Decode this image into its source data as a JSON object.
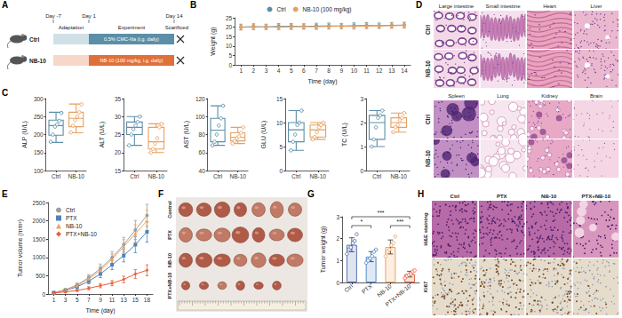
{
  "panel_labels": [
    "A",
    "B",
    "C",
    "D",
    "E",
    "F",
    "G",
    "H"
  ],
  "schematic": {
    "days": [
      "Day -7",
      "Day 1",
      "Day 14"
    ],
    "phases": [
      "Adaptation",
      "Experiment",
      "Scarificed"
    ],
    "groups": [
      {
        "name": "Ctrl",
        "treatment": "0.5% CMC-Na (i.g. daily)",
        "color": "#5b8fa8"
      },
      {
        "name": "NB-10",
        "treatment": "NB-10 (100 mg/kg, i.g. daily)",
        "color": "#e0703a"
      }
    ]
  },
  "histology": {
    "rows": [
      "Ctrl",
      "NB-10"
    ],
    "organs": [
      [
        "Large intestine",
        "Small intestine",
        "Heart",
        "Liver"
      ],
      [
        "Spleen",
        "Lung",
        "Kidney",
        "Brain"
      ]
    ]
  },
  "tumor_photos": {
    "groups": [
      "Control",
      "PTX",
      "NB-10",
      "PTX+NB-10"
    ]
  },
  "staining": {
    "columns": [
      "Ctrl",
      "PTX",
      "NB-10",
      "PTX+NB-10"
    ],
    "rows": [
      "H&E staining",
      "Ki67"
    ]
  },
  "chart_data": [
    {
      "type": "line",
      "x_label": "Time (day)",
      "y_label": "Weight (g)",
      "categories": [
        "1",
        "2",
        "3",
        "4",
        "5",
        "6",
        "7",
        "8",
        "9",
        "10",
        "11",
        "12",
        "13",
        "14"
      ],
      "ylim": [
        0,
        25
      ],
      "yticks": [
        0,
        5,
        10,
        15,
        20,
        25
      ],
      "grid": false,
      "legend": "top",
      "series": [
        {
          "name": "Ctrl",
          "color": "#5b8fa8",
          "marker": "circle",
          "values": [
            20.1,
            20.3,
            20.2,
            20.4,
            20.5,
            20.4,
            20.6,
            20.7,
            20.6,
            20.8,
            20.9,
            20.8,
            21.0,
            21.1
          ],
          "errors": [
            1.5,
            1.5,
            1.4,
            1.5,
            1.5,
            1.4,
            1.5,
            1.5,
            1.4,
            1.5,
            1.5,
            1.4,
            1.5,
            1.5
          ]
        },
        {
          "name": "NB-10 (100 mg/kg)",
          "color": "#e8a060",
          "marker": "circle",
          "values": [
            19.9,
            20.0,
            20.1,
            20.0,
            20.2,
            20.3,
            20.2,
            20.4,
            20.5,
            20.4,
            20.6,
            20.7,
            20.8,
            20.9
          ],
          "errors": [
            1.4,
            1.4,
            1.3,
            1.4,
            1.4,
            1.3,
            1.4,
            1.4,
            1.3,
            1.4,
            1.4,
            1.3,
            1.4,
            1.4
          ]
        }
      ]
    },
    {
      "type": "box",
      "y_label": "ALP (U/L)",
      "categories": [
        "Ctrl",
        "NB-10"
      ],
      "colors": [
        "#5b8fa8",
        "#e8a060"
      ],
      "boxes": [
        [
          178,
          198,
          225,
          240,
          262
        ],
        [
          205,
          222,
          245,
          262,
          285
        ]
      ],
      "points": [
        [
          180,
          200,
          222,
          228,
          238,
          260
        ],
        [
          206,
          225,
          240,
          250,
          262,
          284
        ]
      ],
      "ylim": [
        100,
        300
      ],
      "yticks": [
        100,
        150,
        200,
        250,
        300
      ],
      "grid": false
    },
    {
      "type": "box",
      "y_label": "ALT (U/L)",
      "categories": [
        "Ctrl",
        "NB-10"
      ],
      "colors": [
        "#5b8fa8",
        "#e8a060"
      ],
      "boxes": [
        [
          22,
          25,
          27,
          28.5,
          30
        ],
        [
          20,
          21,
          23,
          27,
          28
        ]
      ],
      "points": [
        [
          22,
          25,
          26.5,
          27.5,
          28.5,
          30
        ],
        [
          20,
          21,
          22.5,
          24,
          27,
          28
        ]
      ],
      "ylim": [
        15,
        35
      ],
      "yticks": [
        15,
        20,
        25,
        30,
        35
      ],
      "grid": false
    },
    {
      "type": "box",
      "y_label": "AST (U/L)",
      "categories": [
        "Ctrl",
        "NB-10"
      ],
      "colors": [
        "#5b8fa8",
        "#e8a060"
      ],
      "boxes": [
        [
          68,
          72,
          85,
          98,
          112
        ],
        [
          70,
          73,
          77,
          82,
          88
        ]
      ],
      "points": [
        [
          68,
          72,
          80,
          90,
          98,
          112
        ],
        [
          70,
          73,
          76,
          78,
          82,
          88
        ]
      ],
      "ylim": [
        40,
        120
      ],
      "yticks": [
        40,
        60,
        80,
        100,
        120
      ],
      "grid": false
    },
    {
      "type": "box",
      "y_label": "GLU (U/L)",
      "categories": [
        "Ctrl",
        "NB-10"
      ],
      "colors": [
        "#5b8fa8",
        "#e8a060"
      ],
      "boxes": [
        [
          4.2,
          6.0,
          8.5,
          10.0,
          12.5
        ],
        [
          6.5,
          7.0,
          8.5,
          9.5,
          10.0
        ]
      ],
      "points": [
        [
          4.2,
          6.0,
          7.5,
          9.5,
          10.0,
          12.5
        ],
        [
          6.5,
          7.0,
          8.0,
          9.0,
          9.5,
          10.0
        ]
      ],
      "ylim": [
        0,
        15
      ],
      "yticks": [
        0,
        5,
        10,
        15
      ],
      "grid": false
    },
    {
      "type": "box",
      "y_label": "TC (U/L)",
      "categories": [
        "Ctrl",
        "NB-10"
      ],
      "colors": [
        "#5b8fa8",
        "#e8a060"
      ],
      "boxes": [
        [
          1.0,
          1.3,
          2.0,
          2.3,
          2.5
        ],
        [
          1.6,
          1.8,
          2.0,
          2.2,
          2.4
        ]
      ],
      "points": [
        [
          1.0,
          1.3,
          1.8,
          2.2,
          2.3,
          2.5
        ],
        [
          1.6,
          1.8,
          1.9,
          2.1,
          2.2,
          2.4
        ]
      ],
      "ylim": [
        0,
        3
      ],
      "yticks": [
        0,
        1,
        2,
        3
      ],
      "grid": false
    },
    {
      "type": "line",
      "x_label": "Time (day)",
      "y_label": "Tumor volume (mm³)",
      "categories": [
        "1",
        "3",
        "5",
        "7",
        "9",
        "11",
        "13",
        "15",
        "18"
      ],
      "ylim": [
        0,
        2500
      ],
      "yticks": [
        0,
        500,
        1000,
        1500,
        2000,
        2500
      ],
      "grid": false,
      "legend": "top-left",
      "series": [
        {
          "name": "Ctrl",
          "color": "#9e9e9e",
          "marker": "circle",
          "values": [
            40,
            120,
            250,
            450,
            700,
            1000,
            1350,
            1750,
            2150
          ],
          "errors": [
            10,
            30,
            50,
            80,
            120,
            160,
            200,
            260,
            300
          ]
        },
        {
          "name": "PTX",
          "color": "#4f81bd",
          "marker": "square",
          "values": [
            40,
            100,
            200,
            350,
            550,
            800,
            1050,
            1350,
            1700
          ],
          "errors": [
            10,
            25,
            45,
            70,
            100,
            130,
            170,
            220,
            280
          ]
        },
        {
          "name": "NB-10",
          "color": "#f0a35e",
          "marker": "triangle",
          "values": [
            40,
            110,
            230,
            420,
            650,
            950,
            1300,
            1650,
            2000
          ],
          "errors": [
            10,
            30,
            50,
            80,
            110,
            150,
            190,
            240,
            290
          ]
        },
        {
          "name": "PTX+NB-10",
          "color": "#e8603c",
          "marker": "diamond",
          "values": [
            30,
            60,
            100,
            160,
            230,
            300,
            400,
            550,
            650
          ],
          "errors": [
            8,
            15,
            25,
            40,
            55,
            70,
            90,
            120,
            150
          ]
        }
      ]
    },
    {
      "type": "bar",
      "y_label": "Tumor weight (g)",
      "categories": [
        "Ctrl",
        "PTX",
        "NB-10",
        "PTX+NB-10"
      ],
      "colors": [
        "#5472b0",
        "#4f8cc9",
        "#f0a35e",
        "#e8603c"
      ],
      "values": [
        1.72,
        1.18,
        1.62,
        0.38
      ],
      "errors": [
        0.32,
        0.23,
        0.32,
        0.13
      ],
      "points": [
        [
          1.3,
          1.5,
          1.6,
          1.8,
          1.9,
          2.2
        ],
        [
          0.9,
          1.0,
          1.1,
          1.2,
          1.4,
          1.5
        ],
        [
          1.2,
          1.4,
          1.5,
          1.7,
          1.8,
          2.1
        ],
        [
          0.2,
          0.3,
          0.35,
          0.4,
          0.5,
          0.55
        ]
      ],
      "significance": [
        {
          "between": [
            "Ctrl",
            "PTX"
          ],
          "label": "*"
        },
        {
          "between": [
            "NB-10",
            "PTX+NB-10"
          ],
          "label": "***"
        },
        {
          "between": [
            "Ctrl",
            "PTX+NB-10"
          ],
          "label": "***"
        }
      ],
      "ylim": [
        0,
        3
      ],
      "yticks": [
        0,
        1,
        2,
        3
      ],
      "grid": false
    }
  ]
}
